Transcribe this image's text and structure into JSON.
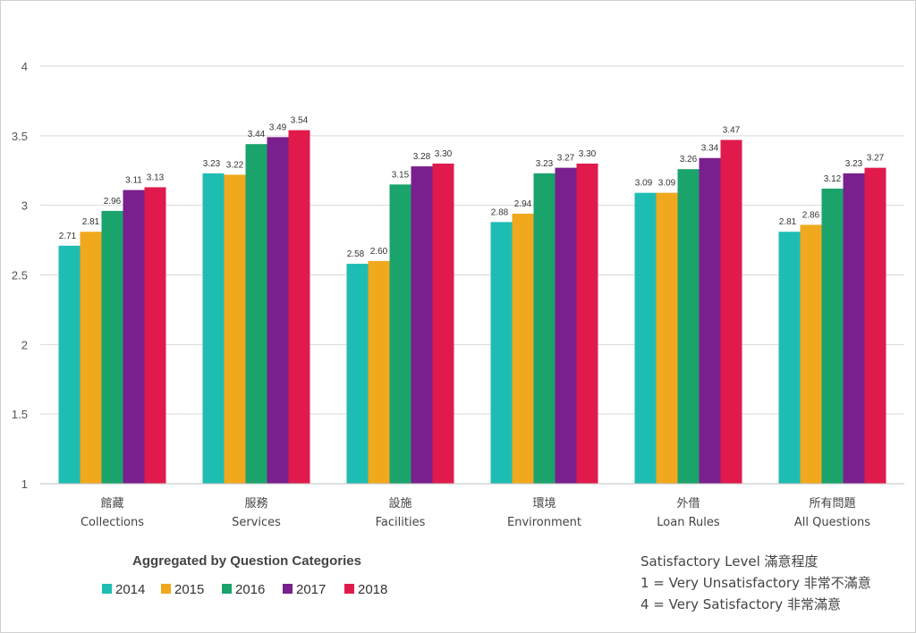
{
  "chart_data": {
    "type": "bar",
    "title": "",
    "xlabel": "",
    "ylabel": "",
    "ylim": [
      1,
      4
    ],
    "yticks": [
      "1",
      "1.5",
      "2",
      "2.5",
      "3",
      "3.5",
      "4"
    ],
    "grid": true,
    "categories": [
      {
        "zh": "館藏",
        "en": "Collections"
      },
      {
        "zh": "服務",
        "en": "Services"
      },
      {
        "zh": "設施",
        "en": "Facilities"
      },
      {
        "zh": "環境",
        "en": "Environment"
      },
      {
        "zh": "外借",
        "en": "Loan Rules"
      },
      {
        "zh": "所有問題",
        "en": "All Questions"
      }
    ],
    "series": [
      {
        "name": "2014",
        "color": "#1ebdb4",
        "values": [
          2.71,
          3.23,
          2.58,
          2.88,
          3.09,
          2.81
        ],
        "labels": [
          "2.71",
          "3.23",
          "2.58",
          "2.88",
          "3.09",
          "2.81"
        ]
      },
      {
        "name": "2015",
        "color": "#f0a81c",
        "values": [
          2.81,
          3.22,
          2.6,
          2.94,
          3.09,
          2.86
        ],
        "labels": [
          "2.81",
          "3.22",
          "2.60",
          "2.94",
          "3.09",
          "2.86"
        ]
      },
      {
        "name": "2016",
        "color": "#1ba36c",
        "values": [
          2.96,
          3.44,
          3.15,
          3.23,
          3.26,
          3.12
        ],
        "labels": [
          "2.96",
          "3.44",
          "3.15",
          "3.23",
          "3.26",
          "3.12"
        ]
      },
      {
        "name": "2017",
        "color": "#7a1f8e",
        "values": [
          3.11,
          3.49,
          3.28,
          3.27,
          3.34,
          3.23
        ],
        "labels": [
          "3.11",
          "3.49",
          "3.28",
          "3.27",
          "3.34",
          "3.23"
        ]
      },
      {
        "name": "2018",
        "color": "#e01b4c",
        "values": [
          3.13,
          3.54,
          3.3,
          3.3,
          3.47,
          3.27
        ],
        "labels": [
          "3.13",
          "3.54",
          "3.30",
          "3.30",
          "3.47",
          "3.27"
        ]
      }
    ],
    "legend": {
      "title": "Aggregated by Question Categories",
      "placement": "bottom-left"
    },
    "notes": [
      "Satisfactory Level 滿意程度",
      "1 = Very Unsatisfactory 非常不滿意",
      "4 = Very Satisfactory 非常滿意"
    ]
  }
}
